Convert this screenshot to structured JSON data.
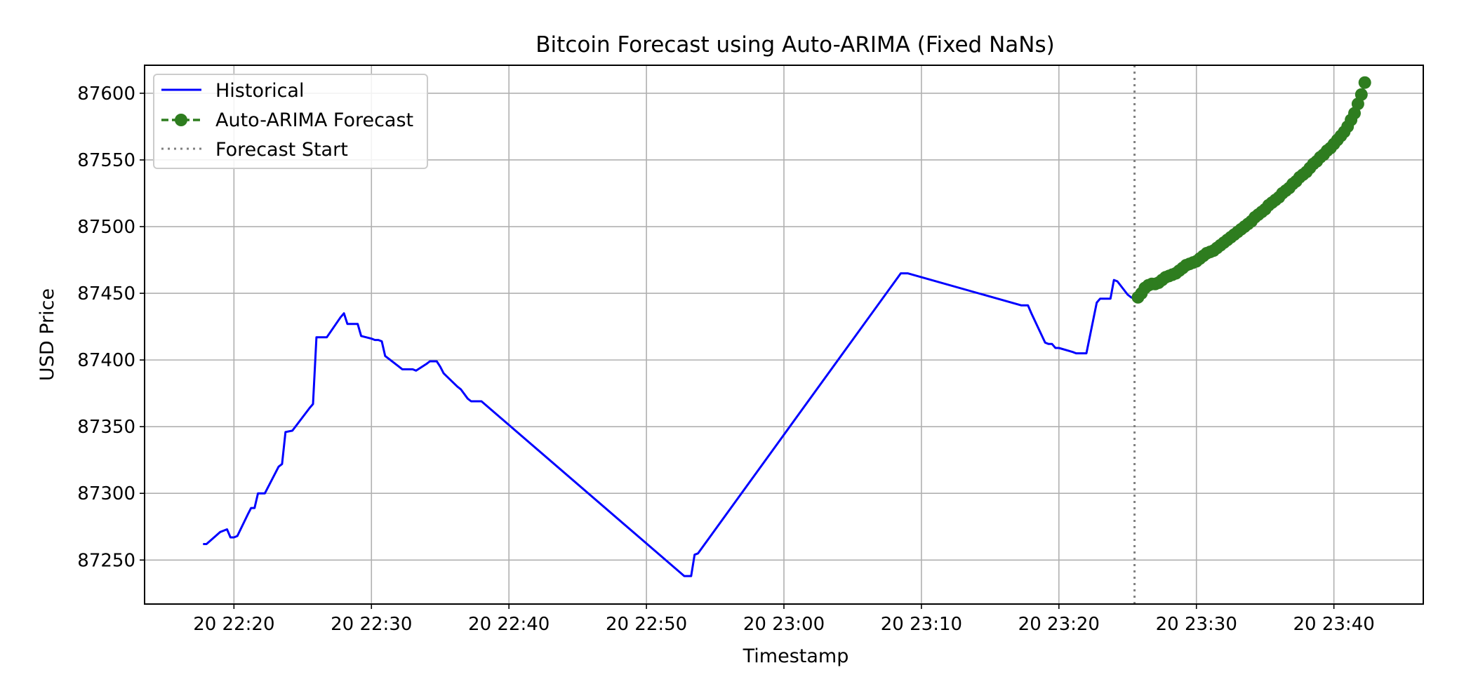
{
  "chart_data": {
    "type": "line",
    "title": "Bitcoin Forecast using Auto-ARIMA (Fixed NaNs)",
    "xlabel": "Timestamp",
    "ylabel": "USD Price",
    "xlim": [
      "20 22:13:30",
      "20 23:46:30"
    ],
    "ylim": [
      87217,
      87621
    ],
    "grid": true,
    "legend_position": "top-left",
    "x_ticks": [
      "20 22:20",
      "20 22:30",
      "20 22:40",
      "20 22:50",
      "20 23:00",
      "20 23:10",
      "20 23:20",
      "20 23:30",
      "20 23:40"
    ],
    "y_ticks": [
      87250,
      87300,
      87350,
      87400,
      87450,
      87500,
      87550,
      87600
    ],
    "legend": [
      {
        "label": "Historical",
        "style": "solid",
        "color": "#0000ff"
      },
      {
        "label": "Auto-ARIMA Forecast",
        "style": "dashed-circle",
        "color": "#2e7d1f"
      },
      {
        "label": "Forecast Start",
        "style": "dotted",
        "color": "#808080"
      }
    ],
    "forecast_start": "20 23:25:30",
    "series": [
      {
        "name": "Historical",
        "color": "#0000ff",
        "points": [
          [
            "20 22:17:45",
            87262
          ],
          [
            "20 22:18:00",
            87262
          ],
          [
            "20 22:19:00",
            87271
          ],
          [
            "20 22:19:15",
            87272
          ],
          [
            "20 22:19:30",
            87273
          ],
          [
            "20 22:19:45",
            87267
          ],
          [
            "20 22:20:00",
            87267
          ],
          [
            "20 22:20:15",
            87268
          ],
          [
            "20 22:21:00",
            87284
          ],
          [
            "20 22:21:15",
            87289
          ],
          [
            "20 22:21:30",
            87289
          ],
          [
            "20 22:21:45",
            87300
          ],
          [
            "20 22:22:15",
            87300
          ],
          [
            "20 22:23:15",
            87320
          ],
          [
            "20 22:23:30",
            87322
          ],
          [
            "20 22:23:45",
            87346
          ],
          [
            "20 22:24:15",
            87347
          ],
          [
            "20 22:25:30",
            87364
          ],
          [
            "20 22:25:45",
            87367
          ],
          [
            "20 22:26:00",
            87417
          ],
          [
            "20 22:26:45",
            87417
          ],
          [
            "20 22:27:45",
            87432
          ],
          [
            "20 22:28:00",
            87435
          ],
          [
            "20 22:28:15",
            87427
          ],
          [
            "20 22:29:00",
            87427
          ],
          [
            "20 22:29:15",
            87418
          ],
          [
            "20 22:30:00",
            87416
          ],
          [
            "20 22:30:15",
            87415
          ],
          [
            "20 22:30:30",
            87415
          ],
          [
            "20 22:30:45",
            87414
          ],
          [
            "20 22:31:00",
            87403
          ],
          [
            "20 22:31:15",
            87401
          ],
          [
            "20 22:32:00",
            87395
          ],
          [
            "20 22:32:15",
            87393
          ],
          [
            "20 22:33:00",
            87393
          ],
          [
            "20 22:33:15",
            87392
          ],
          [
            "20 22:34:00",
            87397
          ],
          [
            "20 22:34:15",
            87399
          ],
          [
            "20 22:34:45",
            87399
          ],
          [
            "20 22:35:00",
            87395
          ],
          [
            "20 22:35:15",
            87390
          ],
          [
            "20 22:36:15",
            87380
          ],
          [
            "20 22:36:30",
            87378
          ],
          [
            "20 22:37:00",
            87371
          ],
          [
            "20 22:37:15",
            87369
          ],
          [
            "20 22:37:30",
            87369
          ],
          [
            "20 22:38:00",
            87369
          ],
          [
            "20 22:52:45",
            87238
          ],
          [
            "20 22:53:15",
            87238
          ],
          [
            "20 22:53:30",
            87254
          ],
          [
            "20 22:53:45",
            87255
          ],
          [
            "20 23:08:30",
            87465
          ],
          [
            "20 23:09:00",
            87465
          ],
          [
            "20 23:17:15",
            87441
          ],
          [
            "20 23:17:45",
            87441
          ],
          [
            "20 23:18:00",
            87435
          ],
          [
            "20 23:19:00",
            87413
          ],
          [
            "20 23:19:15",
            87412
          ],
          [
            "20 23:19:30",
            87412
          ],
          [
            "20 23:19:45",
            87409
          ],
          [
            "20 23:20:00",
            87409
          ],
          [
            "20 23:21:00",
            87406
          ],
          [
            "20 23:21:15",
            87405
          ],
          [
            "20 23:21:45",
            87405
          ],
          [
            "20 23:22:00",
            87405
          ],
          [
            "20 23:22:45",
            87443
          ],
          [
            "20 23:23:00",
            87446
          ],
          [
            "20 23:23:30",
            87446
          ],
          [
            "20 23:23:45",
            87446
          ],
          [
            "20 23:24:00",
            87460
          ],
          [
            "20 23:24:15",
            87459
          ],
          [
            "20 23:25:00",
            87449
          ],
          [
            "20 23:25:15",
            87447
          ],
          [
            "20 23:25:30",
            87446
          ]
        ]
      },
      {
        "name": "Auto-ARIMA Forecast",
        "color": "#2e7d1f",
        "start": "20 23:25:45",
        "end": "20 23:42:15",
        "count": 67,
        "values": [
          87447,
          87450,
          87454,
          87456,
          87457,
          87457,
          87458,
          87460,
          87462,
          87463,
          87464,
          87465,
          87467,
          87469,
          87471,
          87472,
          87473,
          87474,
          87476,
          87478,
          87480,
          87481,
          87482,
          87484,
          87486,
          87488,
          87490,
          87492,
          87494,
          87496,
          87498,
          87500,
          87502,
          87504,
          87507,
          87509,
          87511,
          87513,
          87516,
          87518,
          87520,
          87522,
          87525,
          87527,
          87529,
          87532,
          87534,
          87537,
          87539,
          87541,
          87544,
          87547,
          87549,
          87552,
          87554,
          87557,
          87559,
          87562,
          87565,
          87568,
          87571,
          87575,
          87580,
          87585,
          87592,
          87599,
          87608
        ]
      }
    ]
  }
}
